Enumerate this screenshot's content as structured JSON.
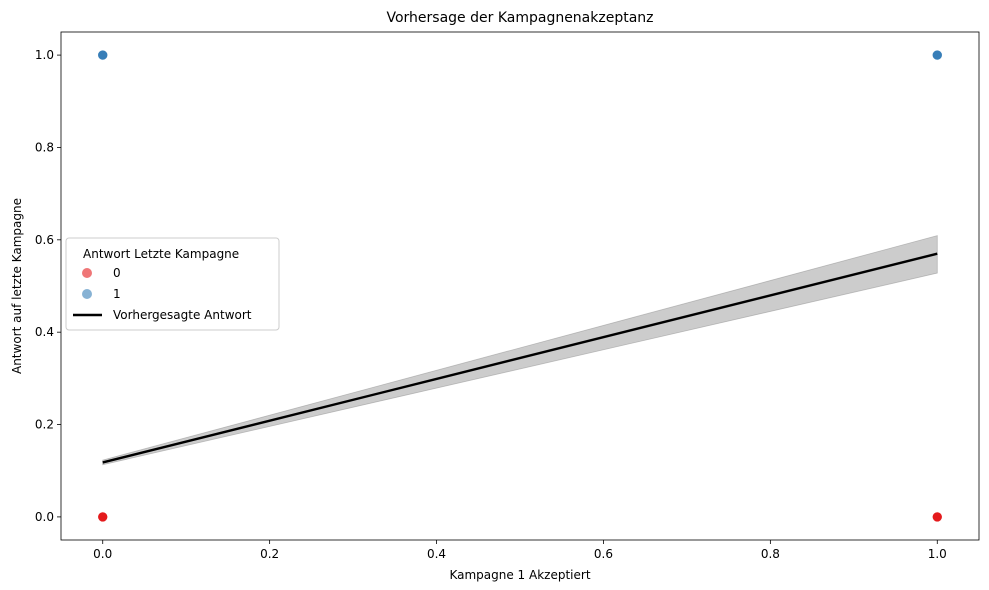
{
  "chart_data": {
    "type": "scatter",
    "title": "Vorhersage der Kampagnenakzeptanz",
    "xlabel": "Kampagne 1 Akzeptiert",
    "ylabel": "Antwort auf letzte Kampagne",
    "xlim": [
      -0.05,
      1.05
    ],
    "ylim": [
      -0.05,
      1.05
    ],
    "xticks": [
      0.0,
      0.2,
      0.4,
      0.6,
      0.8,
      1.0
    ],
    "xtick_labels": [
      "0.0",
      "0.2",
      "0.4",
      "0.6",
      "0.8",
      "1.0"
    ],
    "yticks": [
      0.0,
      0.2,
      0.4,
      0.6,
      0.8,
      1.0
    ],
    "ytick_labels": [
      "0.0",
      "0.2",
      "0.4",
      "0.6",
      "0.8",
      "1.0"
    ],
    "grid": false,
    "legend": {
      "title": "Antwort Letzte Kampagne",
      "placement": "center-left",
      "entries": [
        {
          "label": "0",
          "kind": "marker",
          "color": "#e41a1c"
        },
        {
          "label": "1",
          "kind": "marker",
          "color": "#377eb8"
        },
        {
          "label": "Vorhergesagte Antwort",
          "kind": "line",
          "color": "#000000"
        }
      ]
    },
    "series": [
      {
        "name": "0",
        "color": "#e41a1c",
        "points": [
          {
            "x": 0,
            "y": 0
          },
          {
            "x": 1,
            "y": 0
          }
        ]
      },
      {
        "name": "1",
        "color": "#377eb8",
        "points": [
          {
            "x": 0,
            "y": 1
          },
          {
            "x": 1,
            "y": 1
          }
        ]
      }
    ],
    "prediction": {
      "name": "Vorhergesagte Antwort",
      "color": "#000000",
      "band_color": "#999999",
      "x": [
        0,
        1
      ],
      "y": [
        0.118,
        0.57
      ],
      "lower": [
        0.113,
        0.528
      ],
      "upper": [
        0.123,
        0.609
      ]
    }
  }
}
